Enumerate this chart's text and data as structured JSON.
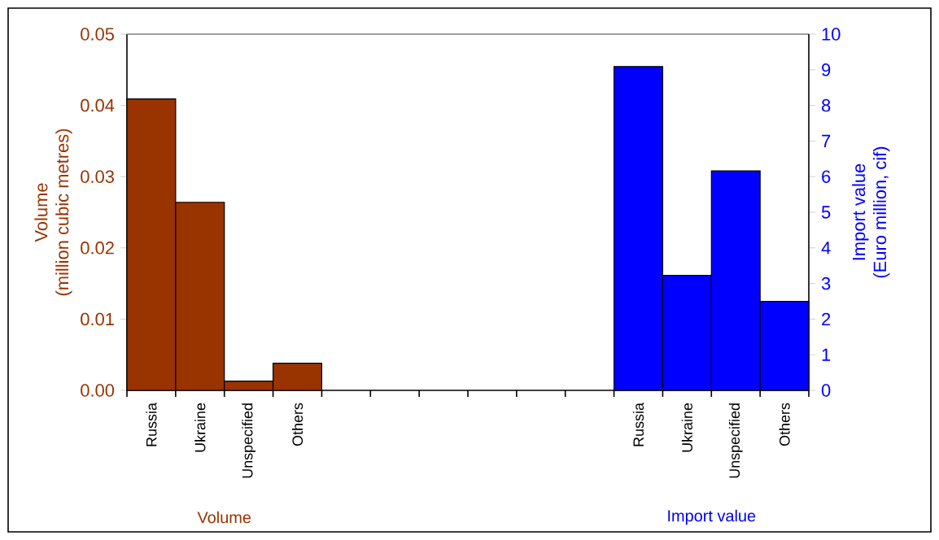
{
  "chart_data": {
    "type": "bar",
    "categories": [
      "Russia",
      "Ukraine",
      "Unspecified",
      "Others",
      null,
      null,
      null,
      null,
      null,
      null,
      "Russia",
      "Ukraine",
      "Unspecified",
      "Others"
    ],
    "series": [
      {
        "name": "Volume",
        "color": "#993300",
        "values": [
          0.0409,
          0.0264,
          0.0013,
          0.0038,
          null,
          null,
          null,
          null,
          null,
          null,
          null,
          null,
          null,
          null
        ]
      },
      {
        "name": "Import value",
        "color": "#0000ff",
        "axis": "y2",
        "values": [
          null,
          null,
          null,
          null,
          null,
          null,
          null,
          null,
          null,
          null,
          9.09,
          3.23,
          6.16,
          2.5
        ]
      }
    ],
    "ylabel": "Volume (million cubic metres)",
    "y2label": "Import value (Euro million, cif)",
    "ylim": [
      0,
      0.05
    ],
    "yticks": [
      {
        "value": 0,
        "label": "0.00"
      },
      {
        "value": 0.01,
        "label": "0.01"
      },
      {
        "value": 0.02,
        "label": "0.02"
      },
      {
        "value": 0.03,
        "label": "0.03"
      },
      {
        "value": 0.04,
        "label": "0.04"
      },
      {
        "value": 0.05,
        "label": "0.05"
      }
    ],
    "y2lim": [
      0,
      10
    ],
    "y2ticks": [
      0,
      1,
      2,
      3,
      4,
      5,
      6,
      7,
      8,
      9,
      10
    ]
  }
}
